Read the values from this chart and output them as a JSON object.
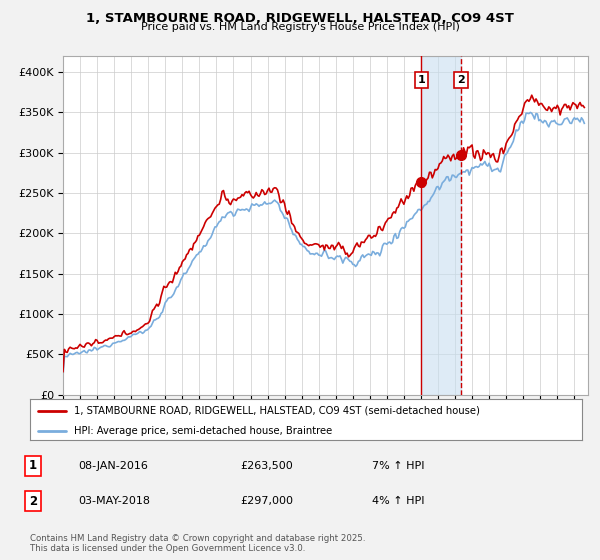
{
  "title": "1, STAMBOURNE ROAD, RIDGEWELL, HALSTEAD, CO9 4ST",
  "subtitle": "Price paid vs. HM Land Registry's House Price Index (HPI)",
  "legend_house": "1, STAMBOURNE ROAD, RIDGEWELL, HALSTEAD, CO9 4ST (semi-detached house)",
  "legend_hpi": "HPI: Average price, semi-detached house, Braintree",
  "footer": "Contains HM Land Registry data © Crown copyright and database right 2025.\nThis data is licensed under the Open Government Licence v3.0.",
  "transaction1_date": "08-JAN-2016",
  "transaction1_price": "£263,500",
  "transaction1_hpi": "7% ↑ HPI",
  "transaction2_date": "03-MAY-2018",
  "transaction2_price": "£297,000",
  "transaction2_hpi": "4% ↑ HPI",
  "house_color": "#cc0000",
  "hpi_color": "#7aaddd",
  "shade_color": "#c8dff0",
  "marker1_x": 2016.03,
  "marker1_y": 263500,
  "marker2_x": 2018.35,
  "marker2_y": 297000,
  "vline1_x": 2016.03,
  "vline2_x": 2018.35,
  "ylim": [
    0,
    420000
  ],
  "xlim_start": 1995,
  "xlim_end": 2025.8,
  "background_color": "#f2f2f2",
  "plot_bg_color": "#ffffff"
}
